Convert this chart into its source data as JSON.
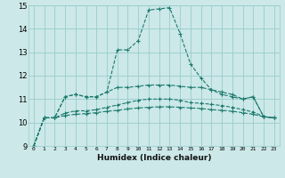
{
  "title": "",
  "xlabel": "Humidex (Indice chaleur)",
  "bg_color": "#cce8e8",
  "grid_color": "#99cccc",
  "line_color": "#1a7a6e",
  "xlim": [
    -0.5,
    23.5
  ],
  "ylim": [
    9,
    15
  ],
  "yticks": [
    9,
    10,
    11,
    12,
    13,
    14,
    15
  ],
  "xticks": [
    0,
    1,
    2,
    3,
    4,
    5,
    6,
    7,
    8,
    9,
    10,
    11,
    12,
    13,
    14,
    15,
    16,
    17,
    18,
    19,
    20,
    21,
    22,
    23
  ],
  "series": [
    {
      "x": [
        0,
        1,
        2,
        3,
        4,
        5,
        6,
        7,
        8,
        9,
        10,
        11,
        12,
        13,
        14,
        15,
        16,
        17,
        18,
        19,
        20,
        21,
        22,
        23
      ],
      "y": [
        9.0,
        10.2,
        10.2,
        11.1,
        11.2,
        11.1,
        11.1,
        11.3,
        13.1,
        13.1,
        13.5,
        14.8,
        14.85,
        14.9,
        13.8,
        12.5,
        11.9,
        11.4,
        11.2,
        11.1,
        11.0,
        11.1,
        10.25,
        10.2
      ]
    },
    {
      "x": [
        0,
        1,
        2,
        3,
        4,
        5,
        6,
        7,
        8,
        9,
        10,
        11,
        12,
        13,
        14,
        15,
        16,
        17,
        18,
        19,
        20,
        21,
        22,
        23
      ],
      "y": [
        9.0,
        10.2,
        10.2,
        11.1,
        11.2,
        11.1,
        11.1,
        11.3,
        11.5,
        11.5,
        11.55,
        11.6,
        11.6,
        11.6,
        11.55,
        11.5,
        11.5,
        11.4,
        11.3,
        11.2,
        11.0,
        11.1,
        10.25,
        10.2
      ]
    },
    {
      "x": [
        0,
        1,
        2,
        3,
        4,
        5,
        6,
        7,
        8,
        9,
        10,
        11,
        12,
        13,
        14,
        15,
        16,
        17,
        18,
        19,
        20,
        21,
        22,
        23
      ],
      "y": [
        9.0,
        10.2,
        10.2,
        10.4,
        10.5,
        10.5,
        10.55,
        10.65,
        10.75,
        10.85,
        10.95,
        11.0,
        11.0,
        11.0,
        10.95,
        10.85,
        10.82,
        10.78,
        10.72,
        10.65,
        10.55,
        10.45,
        10.25,
        10.2
      ]
    },
    {
      "x": [
        0,
        1,
        2,
        3,
        4,
        5,
        6,
        7,
        8,
        9,
        10,
        11,
        12,
        13,
        14,
        15,
        16,
        17,
        18,
        19,
        20,
        21,
        22,
        23
      ],
      "y": [
        9.0,
        10.2,
        10.2,
        10.3,
        10.35,
        10.38,
        10.42,
        10.48,
        10.52,
        10.58,
        10.62,
        10.65,
        10.67,
        10.67,
        10.65,
        10.62,
        10.6,
        10.55,
        10.52,
        10.48,
        10.42,
        10.35,
        10.25,
        10.2
      ]
    }
  ]
}
